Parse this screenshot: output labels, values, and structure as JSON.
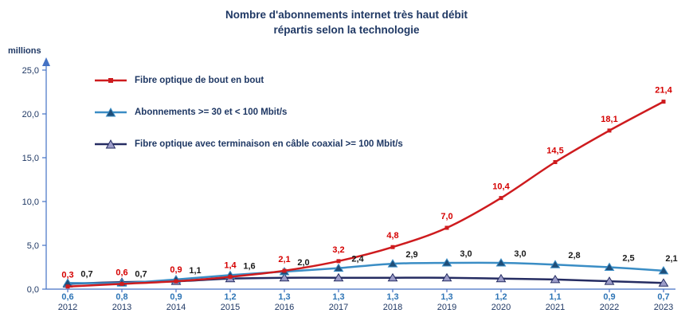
{
  "title": {
    "line1": "Nombre d'abonnements internet très haut débit",
    "line2": "répartis selon la technologie"
  },
  "axis": {
    "y_unit_label": "millions",
    "axis_color": "#4472C4",
    "axis_text_color": "#1F3864"
  },
  "chart_data": {
    "type": "line",
    "title": "Nombre d'abonnements internet très haut débit répartis selon la technologie",
    "xlabel": "",
    "ylabel": "millions",
    "x": [
      "2012",
      "2013",
      "2014",
      "2015",
      "2016",
      "2017",
      "2018",
      "2019",
      "2020",
      "2021",
      "2022",
      "2023"
    ],
    "ylim": [
      0,
      25
    ],
    "ytick_step": 5,
    "ytick_labels": [
      "0,0",
      "5,0",
      "10,0",
      "15,0",
      "20,0",
      "25,0"
    ],
    "grid": false,
    "legend_position": "inside-top-left",
    "series": [
      {
        "name": "Fibre optique de bout en bout",
        "color": "#CE1B1E",
        "marker": "square",
        "marker_fill": "#CE1B1E",
        "label_color": "#D50000",
        "label_position": "above",
        "values": [
          0.3,
          0.6,
          0.9,
          1.4,
          2.1,
          3.2,
          4.8,
          7.0,
          10.4,
          14.5,
          18.1,
          21.4
        ],
        "labels": [
          "0,3",
          "0,6",
          "0,9",
          "1,4",
          "2,1",
          "3,2",
          "4,8",
          "7,0",
          "10,4",
          "14,5",
          "18,1",
          "21,4"
        ]
      },
      {
        "name": "Abonnements >= 30 et < 100 Mbit/s",
        "color": "#3A8DC5",
        "marker": "triangle",
        "marker_fill": "#1F4E79",
        "label_color": "#1A1A1A",
        "label_position": "above-right",
        "values": [
          0.7,
          0.7,
          1.1,
          1.6,
          2.0,
          2.4,
          2.9,
          3.0,
          3.0,
          2.8,
          2.5,
          2.1
        ],
        "labels": [
          "0,7",
          "0,7",
          "1,1",
          "1,6",
          "2,0",
          "2,4",
          "2,9",
          "3,0",
          "3,0",
          "2,8",
          "2,5",
          "2,1"
        ]
      },
      {
        "name": "Fibre optique avec terminaison en câble coaxial >= 100 Mbit/s",
        "color": "#252C62",
        "marker": "triangle",
        "marker_fill": "#9C9CC8",
        "label_color": "#2E75B6",
        "label_position": "below-axis",
        "values": [
          0.6,
          0.8,
          0.9,
          1.2,
          1.3,
          1.3,
          1.3,
          1.3,
          1.2,
          1.1,
          0.9,
          0.7
        ],
        "labels": [
          "0,6",
          "0,8",
          "0,9",
          "1,2",
          "1,3",
          "1,3",
          "1,3",
          "1,3",
          "1,2",
          "1,1",
          "0,9",
          "0,7"
        ]
      }
    ]
  }
}
